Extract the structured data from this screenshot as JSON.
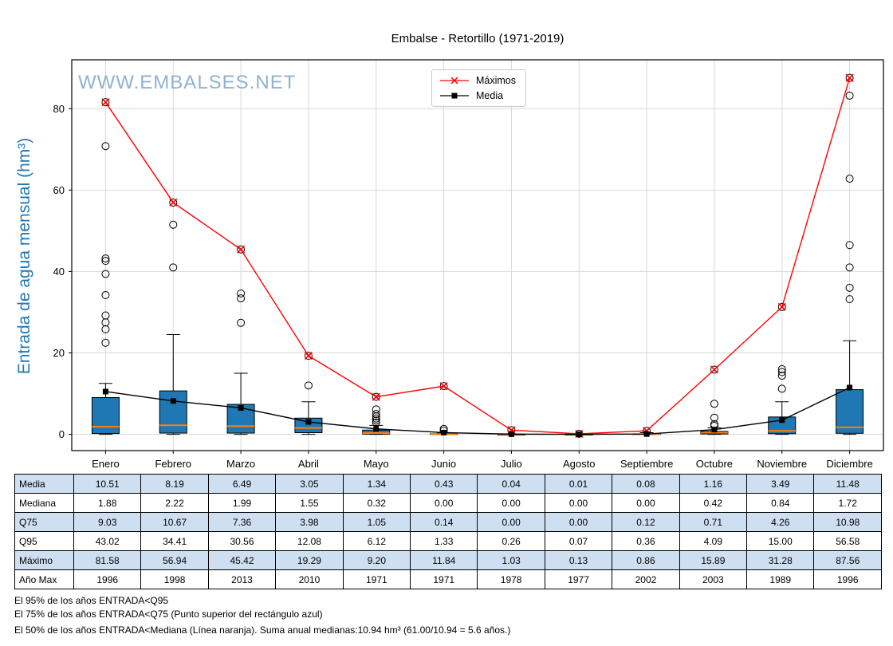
{
  "title": "Embalse - Retortillo (1971-2019)",
  "watermark": "WWW.EMBALSES.NET",
  "ylabel": "Entrada de agua mensual (hm³)",
  "legend": {
    "items": [
      {
        "label": "Máximos"
      },
      {
        "label": "Media"
      }
    ]
  },
  "colors": {
    "box_fill": "#1f77b4",
    "median": "#ff7f0e",
    "max_line": "#ff0000",
    "mean_line": "#000000",
    "grid": "#d8d8d8",
    "row_shade": "#cfdff2",
    "watermark": "#8fb2cf",
    "ylabel": "#1f77b4"
  },
  "chart_data": {
    "type": "boxplot",
    "title": "Embalse - Retortillo (1971-2019)",
    "ylabel": "Entrada de agua mensual (hm³)",
    "categories": [
      "Enero",
      "Febrero",
      "Marzo",
      "Abril",
      "Mayo",
      "Junio",
      "Julio",
      "Agosto",
      "Septiembre",
      "Octubre",
      "Noviembre",
      "Diciembre"
    ],
    "yticks": [
      0,
      20,
      40,
      60,
      80
    ],
    "ylim": [
      -4,
      92
    ],
    "grid": true,
    "legend_position": "top-center",
    "series": [
      {
        "name": "Máximos",
        "marker": "x",
        "color": "#ff0000",
        "values": [
          81.58,
          56.94,
          45.42,
          19.29,
          9.2,
          11.84,
          1.03,
          0.13,
          0.86,
          15.89,
          31.28,
          87.56
        ]
      },
      {
        "name": "Media",
        "marker": "square",
        "color": "#000000",
        "values": [
          10.51,
          8.19,
          6.49,
          3.05,
          1.34,
          0.43,
          0.04,
          0.01,
          0.08,
          1.16,
          3.49,
          11.48
        ]
      }
    ],
    "boxes": {
      "q1": [
        0.2,
        0.3,
        0.3,
        0.4,
        0.05,
        0,
        0,
        0,
        0,
        0.08,
        0.15,
        0.25
      ],
      "median": [
        1.88,
        2.22,
        1.99,
        1.55,
        0.32,
        0.0,
        0.0,
        0.0,
        0.0,
        0.42,
        0.84,
        1.72
      ],
      "q3": [
        9.03,
        10.67,
        7.36,
        3.98,
        1.05,
        0.14,
        0.0,
        0.0,
        0.12,
        0.71,
        4.26,
        10.98
      ],
      "whisker_low": [
        0,
        0,
        0,
        0,
        0,
        0,
        0,
        0,
        0,
        0,
        0,
        0
      ],
      "whisker_high": [
        12.5,
        24.5,
        15.0,
        8.0,
        2.2,
        0.35,
        0.05,
        0.02,
        0.4,
        1.6,
        8.0,
        23.0
      ],
      "outliers": [
        [
          22.5,
          25.8,
          27.5,
          29.2,
          34.2,
          39.4,
          42.6,
          43.2,
          70.8,
          81.58
        ],
        [
          41.0,
          51.5,
          56.94
        ],
        [
          27.4,
          33.4,
          34.6,
          45.42
        ],
        [
          12.0,
          19.29
        ],
        [
          2.9,
          3.4,
          3.9,
          4.4,
          5.0,
          6.12,
          9.2
        ],
        [
          0.9,
          1.33,
          11.84
        ],
        [
          1.03
        ],
        [
          0.13
        ],
        [
          0.86
        ],
        [
          2.1,
          2.5,
          4.09,
          7.5,
          15.89
        ],
        [
          11.2,
          14.4,
          15.3,
          16.0,
          31.28
        ],
        [
          33.2,
          36.0,
          41.0,
          46.5,
          62.8,
          83.2,
          87.56
        ]
      ]
    }
  },
  "table": {
    "rows": [
      {
        "label": "Media",
        "values": [
          "10.51",
          "8.19",
          "6.49",
          "3.05",
          "1.34",
          "0.43",
          "0.04",
          "0.01",
          "0.08",
          "1.16",
          "3.49",
          "11.48"
        ]
      },
      {
        "label": "Mediana",
        "values": [
          "1.88",
          "2.22",
          "1.99",
          "1.55",
          "0.32",
          "0.00",
          "0.00",
          "0.00",
          "0.00",
          "0.42",
          "0.84",
          "1.72"
        ]
      },
      {
        "label": "Q75",
        "values": [
          "9.03",
          "10.67",
          "7.36",
          "3.98",
          "1.05",
          "0.14",
          "0.00",
          "0.00",
          "0.12",
          "0.71",
          "4.26",
          "10.98"
        ]
      },
      {
        "label": "Q95",
        "values": [
          "43.02",
          "34.41",
          "30.56",
          "12.08",
          "6.12",
          "1.33",
          "0.26",
          "0.07",
          "0.36",
          "4.09",
          "15.00",
          "56.58"
        ]
      },
      {
        "label": "Máximo",
        "values": [
          "81.58",
          "56.94",
          "45.42",
          "19.29",
          "9.20",
          "11.84",
          "1.03",
          "0.13",
          "0.86",
          "15.89",
          "31.28",
          "87.56"
        ]
      },
      {
        "label": "Año Max",
        "values": [
          "1996",
          "1998",
          "2013",
          "2010",
          "1971",
          "1971",
          "1978",
          "1977",
          "2002",
          "2003",
          "1989",
          "1996"
        ]
      }
    ]
  },
  "footnotes": [
    "El 95% de los años ENTRADA<Q95",
    "El 75% de los años ENTRADA<Q75 (Punto superior del rectángulo azul)",
    "El 50% de los años ENTRADA<Mediana (Línea naranja). Suma anual medianas:10.94 hm³ (61.00/10.94 = 5.6 años.)"
  ]
}
